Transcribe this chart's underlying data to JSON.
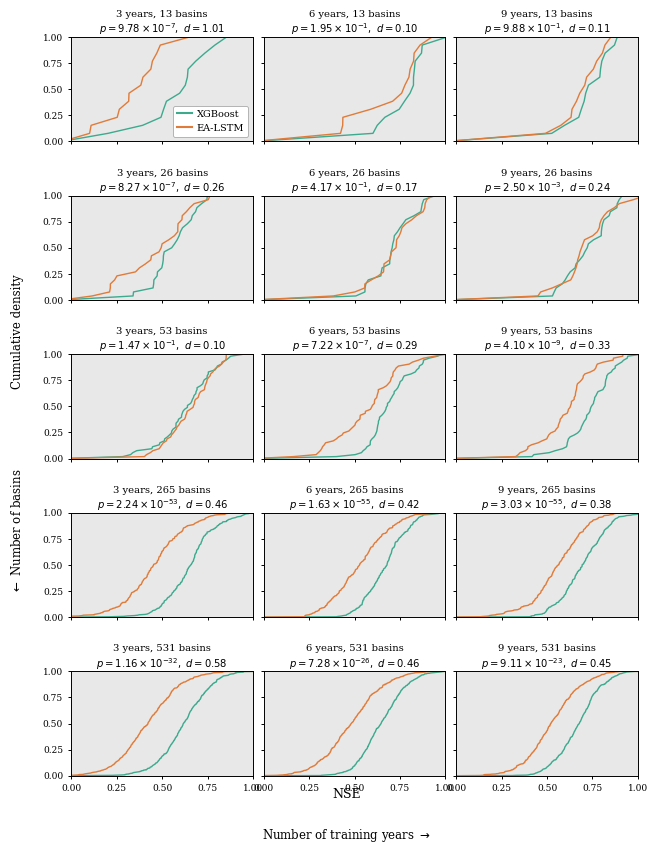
{
  "rows": [
    13,
    26,
    53,
    265,
    531
  ],
  "cols": [
    3,
    6,
    9
  ],
  "titles": [
    [
      "3 years, 13 basins",
      "6 years, 13 basins",
      "9 years, 13 basins"
    ],
    [
      "3 years, 26 basins",
      "6 years, 26 basins",
      "9 years, 26 basins"
    ],
    [
      "3 years, 53 basins",
      "6 years, 53 basins",
      "9 years, 53 basins"
    ],
    [
      "3 years, 265 basins",
      "6 years, 265 basins",
      "9 years, 265 basins"
    ],
    [
      "3 years, 531 basins",
      "6 years, 531 basins",
      "9 years, 531 basins"
    ]
  ],
  "subtitles": [
    [
      "$p = 9.78\\times10^{-7},\\ d = 1.01$",
      "$p = 1.95\\times10^{-1},\\ d = 0.10$",
      "$p = 9.88\\times10^{-1},\\ d = 0.11$"
    ],
    [
      "$p = 8.27\\times10^{-7},\\ d = 0.26$",
      "$p = 4.17\\times10^{-1},\\ d = 0.17$",
      "$p = 2.50\\times10^{-3},\\ d = 0.24$"
    ],
    [
      "$p = 1.47\\times10^{-1},\\ d = 0.10$",
      "$p = 7.22\\times10^{-7},\\ d = 0.29$",
      "$p = 4.10\\times10^{-9},\\ d = 0.33$"
    ],
    [
      "$p = 2.24\\times10^{-53},\\ d = 0.46$",
      "$p = 1.63\\times10^{-55},\\ d = 0.42$",
      "$p = 3.03\\times10^{-55},\\ d = 0.38$"
    ],
    [
      "$p = 1.16\\times10^{-32},\\ d = 0.58$",
      "$p = 7.28\\times10^{-26},\\ d = 0.46$",
      "$p = 9.11\\times10^{-23},\\ d = 0.45$"
    ]
  ],
  "xgboost_color": "#3daa8e",
  "ealstm_color": "#e07b39",
  "bg_color": "#e8e8e8",
  "xlabel": "NSE",
  "bottom_label": "Number of training years $\\rightarrow$",
  "ylabel_top": "Cumulative density",
  "ylabel_bottom": "$\\leftarrow$ Number of basins",
  "cdf_params": [
    [
      {
        "xgb_mu": 0.62,
        "xgb_sig": 0.18,
        "ea_mu": 0.35,
        "ea_sig": 0.18
      },
      {
        "xgb_mu": 0.74,
        "xgb_sig": 0.12,
        "ea_mu": 0.7,
        "ea_sig": 0.14
      },
      {
        "xgb_mu": 0.76,
        "xgb_sig": 0.11,
        "ea_mu": 0.74,
        "ea_sig": 0.12
      }
    ],
    [
      {
        "xgb_mu": 0.62,
        "xgb_sig": 0.15,
        "ea_mu": 0.44,
        "ea_sig": 0.18
      },
      {
        "xgb_mu": 0.72,
        "xgb_sig": 0.12,
        "ea_mu": 0.68,
        "ea_sig": 0.13
      },
      {
        "xgb_mu": 0.74,
        "xgb_sig": 0.11,
        "ea_mu": 0.71,
        "ea_sig": 0.12
      }
    ],
    [
      {
        "xgb_mu": 0.67,
        "xgb_sig": 0.13,
        "ea_mu": 0.64,
        "ea_sig": 0.14
      },
      {
        "xgb_mu": 0.7,
        "xgb_sig": 0.12,
        "ea_mu": 0.56,
        "ea_sig": 0.16
      },
      {
        "xgb_mu": 0.72,
        "xgb_sig": 0.11,
        "ea_mu": 0.6,
        "ea_sig": 0.15
      }
    ],
    [
      {
        "xgb_mu": 0.65,
        "xgb_sig": 0.13,
        "ea_mu": 0.46,
        "ea_sig": 0.16
      },
      {
        "xgb_mu": 0.68,
        "xgb_sig": 0.12,
        "ea_mu": 0.52,
        "ea_sig": 0.15
      },
      {
        "xgb_mu": 0.7,
        "xgb_sig": 0.12,
        "ea_mu": 0.56,
        "ea_sig": 0.14
      }
    ],
    [
      {
        "xgb_mu": 0.62,
        "xgb_sig": 0.13,
        "ea_mu": 0.42,
        "ea_sig": 0.16
      },
      {
        "xgb_mu": 0.65,
        "xgb_sig": 0.12,
        "ea_mu": 0.48,
        "ea_sig": 0.15
      },
      {
        "xgb_mu": 0.67,
        "xgb_sig": 0.12,
        "ea_mu": 0.52,
        "ea_sig": 0.14
      }
    ]
  ]
}
